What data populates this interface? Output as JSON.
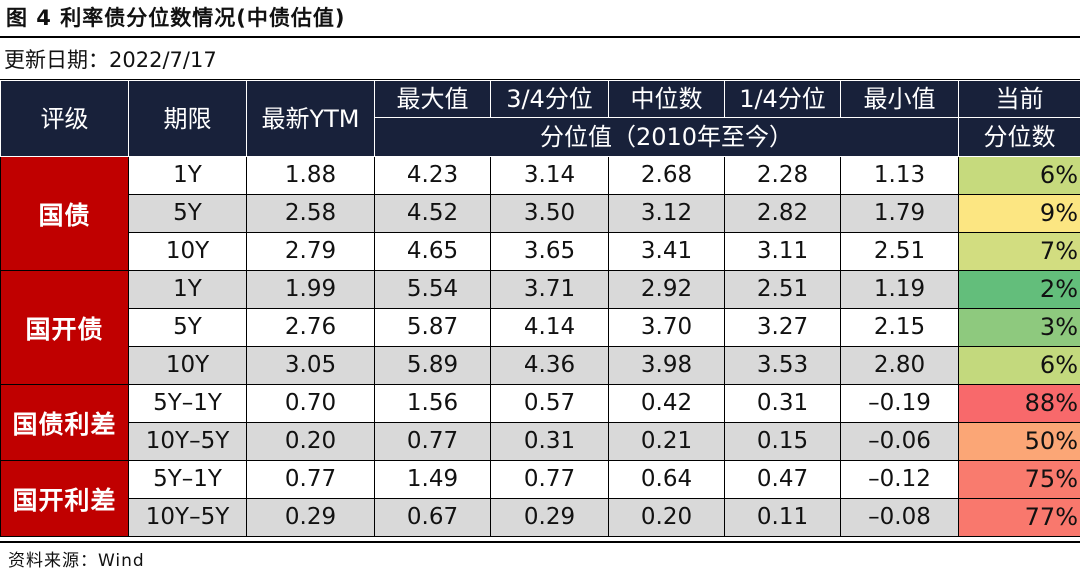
{
  "title": "图 4  利率债分位数情况(中债估值)",
  "update_date": "更新日期：2022/7/17",
  "source": "资料来源：Wind",
  "headers": {
    "rating": "评级",
    "tenor": "期限",
    "latest": "最新YTM",
    "max": "最大值",
    "q3": "3/4分位",
    "median": "中位数",
    "q1": "1/4分位",
    "min": "最小值",
    "pctile_line1": "当前",
    "pctile_line2": "分位数",
    "subheader": "分位值（2010年至今）"
  },
  "groups": [
    {
      "name": "国债",
      "rows": [
        {
          "tenor": "1Y",
          "latest": "1.88",
          "max": "4.23",
          "q3": "3.14",
          "median": "2.68",
          "q1": "2.28",
          "min": "1.13",
          "pct": "6%",
          "pct_color": "#c6da7d",
          "shade": "w"
        },
        {
          "tenor": "5Y",
          "latest": "2.58",
          "max": "4.52",
          "q3": "3.50",
          "median": "3.12",
          "q1": "2.82",
          "min": "1.79",
          "pct": "9%",
          "pct_color": "#fce682",
          "shade": "g"
        },
        {
          "tenor": "10Y",
          "latest": "2.79",
          "max": "4.65",
          "q3": "3.65",
          "median": "3.41",
          "q1": "3.11",
          "min": "2.51",
          "pct": "7%",
          "pct_color": "#d2dd80",
          "shade": "w"
        }
      ]
    },
    {
      "name": "国开债",
      "rows": [
        {
          "tenor": "1Y",
          "latest": "1.99",
          "max": "5.54",
          "q3": "3.71",
          "median": "2.92",
          "q1": "2.51",
          "min": "1.19",
          "pct": "2%",
          "pct_color": "#63be7b",
          "shade": "g"
        },
        {
          "tenor": "5Y",
          "latest": "2.76",
          "max": "5.87",
          "q3": "4.14",
          "median": "3.70",
          "q1": "3.27",
          "min": "2.15",
          "pct": "3%",
          "pct_color": "#8ec97e",
          "shade": "w"
        },
        {
          "tenor": "10Y",
          "latest": "3.05",
          "max": "5.89",
          "q3": "4.36",
          "median": "3.98",
          "q1": "3.53",
          "min": "2.80",
          "pct": "6%",
          "pct_color": "#c3d97d",
          "shade": "g"
        }
      ]
    },
    {
      "name": "国债利差",
      "rows": [
        {
          "tenor": "5Y–1Y",
          "latest": "0.70",
          "max": "1.56",
          "q3": "0.57",
          "median": "0.42",
          "q1": "0.31",
          "min": "–0.19",
          "pct": "88%",
          "pct_color": "#f8696b",
          "shade": "w"
        },
        {
          "tenor": "10Y–5Y",
          "latest": "0.20",
          "max": "0.77",
          "q3": "0.31",
          "median": "0.21",
          "q1": "0.15",
          "min": "–0.06",
          "pct": "50%",
          "pct_color": "#fba676",
          "shade": "g"
        }
      ]
    },
    {
      "name": "国开利差",
      "rows": [
        {
          "tenor": "5Y–1Y",
          "latest": "0.77",
          "max": "1.49",
          "q3": "0.77",
          "median": "0.64",
          "q1": "0.47",
          "min": "–0.12",
          "pct": "75%",
          "pct_color": "#f97b6e",
          "shade": "w"
        },
        {
          "tenor": "10Y–5Y",
          "latest": "0.29",
          "max": "0.67",
          "q3": "0.29",
          "median": "0.20",
          "q1": "0.11",
          "min": "–0.08",
          "pct": "77%",
          "pct_color": "#f9786d",
          "shade": "g"
        }
      ]
    }
  ]
}
